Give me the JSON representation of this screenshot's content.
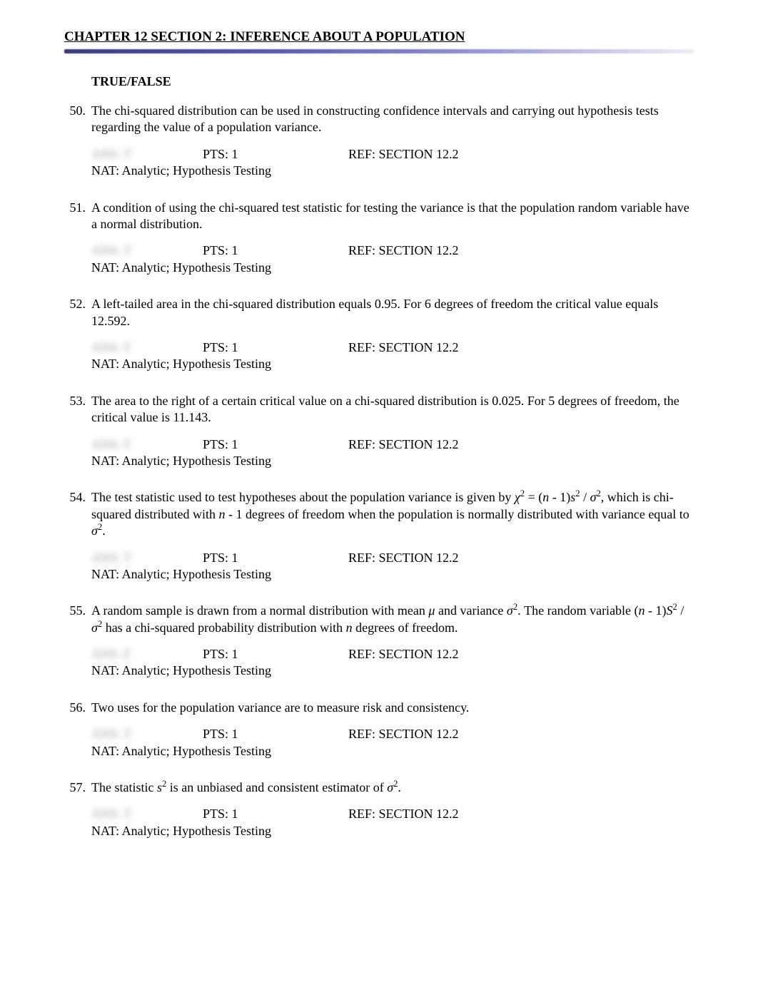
{
  "chapter_title": "CHAPTER 12 SECTION 2: INFERENCE ABOUT A POPULATION",
  "section_heading": "TRUE/FALSE",
  "questions": [
    {
      "num": "50.",
      "text": "The chi-squared distribution can be used in constructing confidence intervals and carrying out hypothesis tests regarding the value of a population variance.",
      "ans": "ANS:  T",
      "pts": "PTS:   1",
      "ref": "REF:   SECTION 12.2",
      "nat": "NAT:  Analytic; Hypothesis Testing"
    },
    {
      "num": "51.",
      "text": "A condition of using the chi-squared test statistic for testing the variance is that the population random variable have a normal distribution.",
      "ans": "ANS:  T",
      "pts": "PTS:   1",
      "ref": "REF:   SECTION 12.2",
      "nat": "NAT:  Analytic; Hypothesis Testing"
    },
    {
      "num": "52.",
      "text": "A left-tailed area in the chi-squared distribution equals 0.95. For 6 degrees of freedom the critical value equals 12.592.",
      "ans": "ANS:  F",
      "pts": "PTS:   1",
      "ref": "REF:   SECTION 12.2",
      "nat": "NAT:  Analytic; Hypothesis Testing"
    },
    {
      "num": "53.",
      "text": "The area to the right of a certain critical value on a chi-squared distribution is 0.025. For 5 degrees of freedom, the critical value is 11.143.",
      "ans": "ANS:  F",
      "pts": "PTS:   1",
      "ref": "REF:   SECTION 12.2",
      "nat": "NAT:  Analytic; Hypothesis Testing"
    },
    {
      "num": "54.",
      "text_html": "The test statistic used to test hypotheses about the population variance is given by <span class='italic'>χ</span><sup>2</sup> = (<span class='italic'>n</span> - 1)<span class='italic'>s</span><sup>2</sup> / <span class='italic'>σ</span><sup>2</sup>, which is chi-squared distributed with <span class='italic'>n</span> - 1 degrees of freedom when the population is normally distributed with variance equal to <span class='italic'>σ</span><sup>2</sup>.",
      "ans": "ANS:  T",
      "pts": "PTS:   1",
      "ref": "REF:   SECTION 12.2",
      "nat": "NAT:  Analytic; Hypothesis Testing"
    },
    {
      "num": "55.",
      "text_html": "A random sample is drawn from a normal distribution with mean <span class='italic'>μ</span> and variance <span class='italic'>σ</span><sup>2</sup>. The random variable (<span class='italic'>n</span> - 1)<span class='italic'>S</span><sup>2</sup> / <span class='italic'>σ</span><sup>2</sup> has a chi-squared probability distribution with <span class='italic'>n</span> degrees of freedom.",
      "ans": "ANS:  F",
      "pts": "PTS:   1",
      "ref": "REF:   SECTION 12.2",
      "nat": "NAT:  Analytic; Hypothesis Testing"
    },
    {
      "num": "56.",
      "text": "Two uses for the population variance are to measure risk and consistency.",
      "ans": "ANS:  T",
      "pts": "PTS:   1",
      "ref": "REF:   SECTION 12.2",
      "nat": "NAT:  Analytic; Hypothesis Testing"
    },
    {
      "num": "57.",
      "text_html": "The statistic <span class='italic'>s</span><sup>2</sup> is an unbiased and consistent estimator of <span class='italic'>σ</span><sup>2</sup>.",
      "ans": "ANS:  T",
      "pts": "PTS:   1",
      "ref": "REF:   SECTION 12.2",
      "nat": "NAT:  Analytic; Hypothesis Testing"
    }
  ]
}
